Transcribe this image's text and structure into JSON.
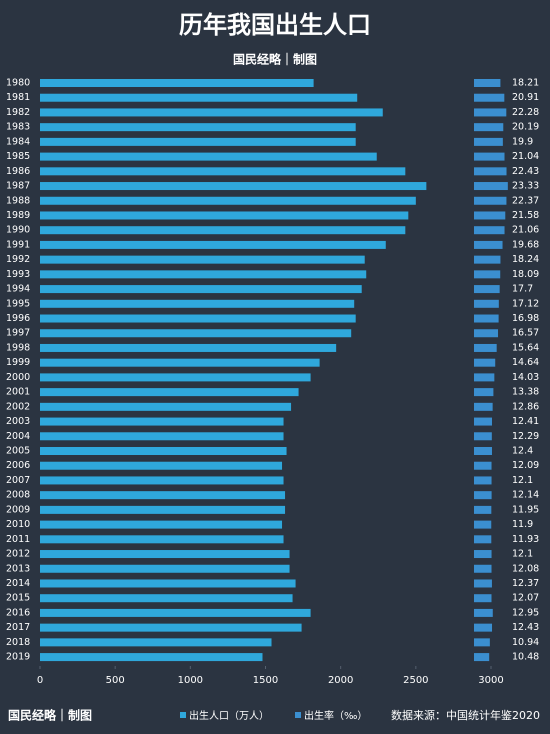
{
  "chart_data": {
    "type": "bar",
    "orientation": "horizontal",
    "title": "历年我国出生人口",
    "subtitle": "国民经略｜制图",
    "credit": "国民经略｜制图",
    "source": "数据来源：中国统计年鉴2020",
    "categories": [
      "1980",
      "1981",
      "1982",
      "1983",
      "1984",
      "1985",
      "1986",
      "1987",
      "1988",
      "1989",
      "1990",
      "1991",
      "1992",
      "1993",
      "1994",
      "1995",
      "1996",
      "1997",
      "1998",
      "1999",
      "2000",
      "2001",
      "2002",
      "2003",
      "2004",
      "2005",
      "2006",
      "2007",
      "2008",
      "2009",
      "2010",
      "2011",
      "2012",
      "2013",
      "2014",
      "2015",
      "2016",
      "2017",
      "2018",
      "2019"
    ],
    "series": [
      {
        "name": "出生人口（万人）",
        "color": "#2fa8dc",
        "values": [
          1820,
          2110,
          2280,
          2100,
          2100,
          2240,
          2430,
          2570,
          2500,
          2450,
          2430,
          2300,
          2160,
          2170,
          2140,
          2090,
          2100,
          2070,
          1970,
          1860,
          1800,
          1720,
          1670,
          1620,
          1620,
          1640,
          1610,
          1620,
          1630,
          1630,
          1610,
          1620,
          1660,
          1660,
          1700,
          1680,
          1800,
          1740,
          1540,
          1480
        ]
      },
      {
        "name": "出生率（‰）",
        "color": "#3b8fd0",
        "values": [
          18.21,
          20.91,
          22.28,
          20.19,
          19.9,
          21.04,
          22.43,
          23.33,
          22.37,
          21.58,
          21.06,
          19.68,
          18.24,
          18.09,
          17.7,
          17.12,
          16.98,
          16.57,
          15.64,
          14.64,
          14.03,
          13.38,
          12.86,
          12.41,
          12.29,
          12.4,
          12.09,
          12.1,
          12.14,
          11.95,
          11.9,
          11.93,
          12.1,
          12.08,
          12.37,
          12.07,
          12.95,
          12.43,
          10.94,
          10.48
        ]
      }
    ],
    "xlim": [
      0,
      3000
    ],
    "xticks": [
      0,
      500,
      1000,
      1500,
      2000,
      2500,
      3000
    ],
    "grid": false
  }
}
